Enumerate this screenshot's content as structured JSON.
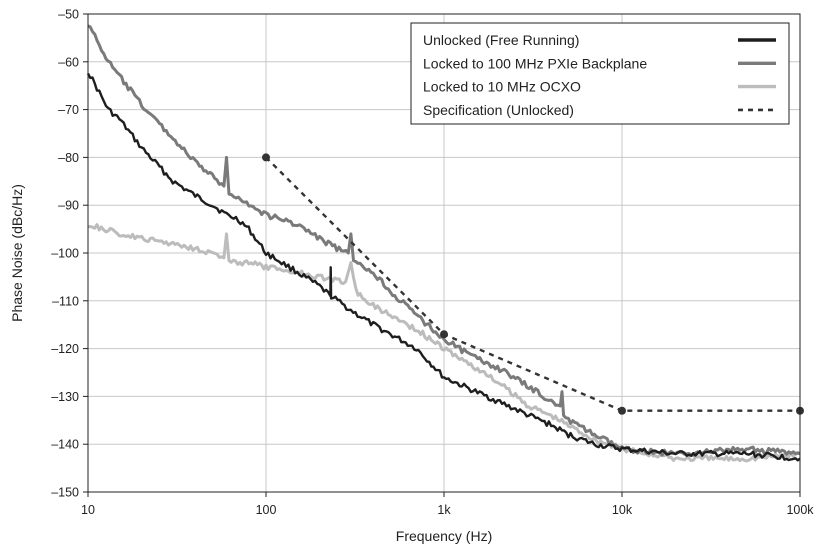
{
  "chart_data": {
    "type": "line",
    "title": "",
    "xlabel": "Frequency (Hz)",
    "ylabel": "Phase Noise (dBc/Hz)",
    "xscale": "log",
    "xlim": [
      10,
      100000
    ],
    "ylim": [
      -150,
      -50
    ],
    "grid": true,
    "legend_position": "top-right",
    "x_ticks": [
      {
        "value": 10,
        "label": "10"
      },
      {
        "value": 100,
        "label": "100"
      },
      {
        "value": 1000,
        "label": "1k"
      },
      {
        "value": 10000,
        "label": "10k"
      },
      {
        "value": 100000,
        "label": "100k"
      }
    ],
    "y_ticks": [
      {
        "value": -50,
        "label": "–50"
      },
      {
        "value": -60,
        "label": "–60"
      },
      {
        "value": -70,
        "label": "–70"
      },
      {
        "value": -80,
        "label": "–80"
      },
      {
        "value": -90,
        "label": "–90"
      },
      {
        "value": -100,
        "label": "–100"
      },
      {
        "value": -110,
        "label": "–110"
      },
      {
        "value": -120,
        "label": "–120"
      },
      {
        "value": -130,
        "label": "–130"
      },
      {
        "value": -140,
        "label": "–140"
      },
      {
        "value": -150,
        "label": "–150"
      }
    ],
    "series": [
      {
        "name": "Unlocked (Free Running)",
        "color": "#1e1e1e",
        "style": "solid",
        "points": [
          [
            10,
            -62
          ],
          [
            13,
            -70
          ],
          [
            15,
            -72
          ],
          [
            20,
            -78
          ],
          [
            30,
            -85
          ],
          [
            40,
            -88
          ],
          [
            50,
            -90
          ],
          [
            60,
            -92
          ],
          [
            70,
            -93
          ],
          [
            80,
            -95
          ],
          [
            100,
            -100
          ],
          [
            150,
            -104
          ],
          [
            200,
            -107
          ],
          [
            230,
            -109
          ],
          [
            231,
            -103
          ],
          [
            232,
            -109
          ],
          [
            300,
            -112
          ],
          [
            400,
            -115
          ],
          [
            500,
            -117
          ],
          [
            700,
            -120
          ],
          [
            1000,
            -126
          ],
          [
            1500,
            -129
          ],
          [
            2000,
            -131
          ],
          [
            3000,
            -134
          ],
          [
            4000,
            -136
          ],
          [
            5000,
            -138
          ],
          [
            7000,
            -140
          ],
          [
            10000,
            -141
          ],
          [
            20000,
            -142
          ],
          [
            50000,
            -142
          ],
          [
            100000,
            -143
          ]
        ]
      },
      {
        "name": "Locked to 100 MHz PXIe Backplane",
        "color": "#7a7a7a",
        "style": "solid",
        "points": [
          [
            10,
            -52
          ],
          [
            13,
            -60
          ],
          [
            15,
            -63
          ],
          [
            20,
            -69
          ],
          [
            30,
            -76
          ],
          [
            40,
            -81
          ],
          [
            50,
            -84
          ],
          [
            58,
            -86
          ],
          [
            60,
            -80
          ],
          [
            62,
            -88
          ],
          [
            70,
            -88
          ],
          [
            80,
            -90
          ],
          [
            100,
            -92
          ],
          [
            150,
            -94
          ],
          [
            200,
            -97
          ],
          [
            250,
            -99
          ],
          [
            290,
            -100
          ],
          [
            300,
            -96
          ],
          [
            310,
            -102
          ],
          [
            400,
            -104
          ],
          [
            500,
            -108
          ],
          [
            700,
            -113
          ],
          [
            1000,
            -118
          ],
          [
            1500,
            -122
          ],
          [
            2000,
            -124
          ],
          [
            3000,
            -128
          ],
          [
            4000,
            -131
          ],
          [
            4500,
            -132
          ],
          [
            4600,
            -129
          ],
          [
            4700,
            -134
          ],
          [
            5000,
            -135
          ],
          [
            7000,
            -138
          ],
          [
            10000,
            -141
          ],
          [
            20000,
            -142
          ],
          [
            50000,
            -141
          ],
          [
            100000,
            -142
          ]
        ]
      },
      {
        "name": "Locked to 10 MHz OCXO",
        "color": "#bcbcbc",
        "style": "solid",
        "points": [
          [
            10,
            -94
          ],
          [
            15,
            -96
          ],
          [
            20,
            -97
          ],
          [
            30,
            -98
          ],
          [
            40,
            -99
          ],
          [
            50,
            -100
          ],
          [
            58,
            -101
          ],
          [
            60,
            -96
          ],
          [
            62,
            -102
          ],
          [
            80,
            -102
          ],
          [
            100,
            -103
          ],
          [
            150,
            -104
          ],
          [
            200,
            -105
          ],
          [
            280,
            -106
          ],
          [
            300,
            -102
          ],
          [
            320,
            -108
          ],
          [
            400,
            -111
          ],
          [
            500,
            -113
          ],
          [
            700,
            -116
          ],
          [
            1000,
            -120
          ],
          [
            1500,
            -124
          ],
          [
            2000,
            -127
          ],
          [
            3000,
            -132
          ],
          [
            4000,
            -134
          ],
          [
            5000,
            -136
          ],
          [
            7000,
            -139
          ],
          [
            10000,
            -141
          ],
          [
            20000,
            -143
          ],
          [
            50000,
            -143
          ],
          [
            100000,
            -142
          ]
        ]
      },
      {
        "name": "Specification (Unlocked)",
        "color": "#333333",
        "style": "dashed",
        "markers": true,
        "points": [
          [
            100,
            -80
          ],
          [
            1000,
            -117
          ],
          [
            10000,
            -133
          ],
          [
            100000,
            -133
          ]
        ]
      }
    ]
  }
}
